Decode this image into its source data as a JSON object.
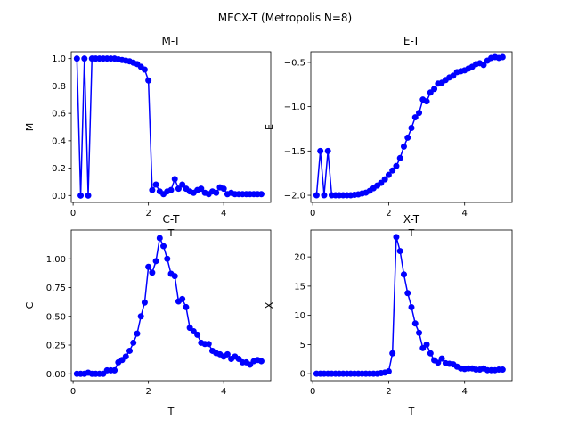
{
  "figure": {
    "title": "MECX-T (Metropolis N=8)"
  },
  "chart_data": [
    {
      "type": "line",
      "title": "M-T",
      "xlabel": "T",
      "ylabel": "M",
      "xlim": [
        -0.05,
        5.25
      ],
      "ylim": [
        -0.05,
        1.05
      ],
      "xticks": [
        0,
        2,
        4
      ],
      "yticks": [
        0.0,
        0.2,
        0.4,
        0.6,
        0.8,
        1.0
      ],
      "color": "#0000ff",
      "marker": "circle",
      "x": [
        0.1,
        0.2,
        0.3,
        0.4,
        0.5,
        0.6,
        0.7,
        0.8,
        0.9,
        1.0,
        1.1,
        1.2,
        1.3,
        1.4,
        1.5,
        1.6,
        1.7,
        1.8,
        1.9,
        2.0,
        2.1,
        2.2,
        2.3,
        2.4,
        2.5,
        2.6,
        2.7,
        2.8,
        2.9,
        3.0,
        3.1,
        3.2,
        3.3,
        3.4,
        3.5,
        3.6,
        3.7,
        3.8,
        3.9,
        4.0,
        4.1,
        4.2,
        4.3,
        4.4,
        4.5,
        4.6,
        4.7,
        4.8,
        4.9,
        5.0
      ],
      "y": [
        1.0,
        0.0,
        1.0,
        0.0,
        1.0,
        1.0,
        1.0,
        1.0,
        1.0,
        1.0,
        1.0,
        0.995,
        0.99,
        0.985,
        0.98,
        0.97,
        0.96,
        0.94,
        0.92,
        0.84,
        0.04,
        0.08,
        0.03,
        0.01,
        0.03,
        0.04,
        0.12,
        0.05,
        0.08,
        0.05,
        0.03,
        0.02,
        0.04,
        0.05,
        0.02,
        0.01,
        0.03,
        0.02,
        0.06,
        0.05,
        0.01,
        0.02,
        0.01,
        0.01,
        0.01,
        0.01,
        0.01,
        0.01,
        0.01,
        0.01
      ]
    },
    {
      "type": "line",
      "title": "E-T",
      "xlabel": "T",
      "ylabel": "E",
      "xlim": [
        -0.05,
        5.25
      ],
      "ylim": [
        -2.08,
        -0.38
      ],
      "xticks": [
        0,
        2,
        4
      ],
      "yticks": [
        -2.0,
        -1.5,
        -1.0,
        -0.5
      ],
      "color": "#0000ff",
      "marker": "circle",
      "x": [
        0.1,
        0.2,
        0.3,
        0.4,
        0.5,
        0.6,
        0.7,
        0.8,
        0.9,
        1.0,
        1.1,
        1.2,
        1.3,
        1.4,
        1.5,
        1.6,
        1.7,
        1.8,
        1.9,
        2.0,
        2.1,
        2.2,
        2.3,
        2.4,
        2.5,
        2.6,
        2.7,
        2.8,
        2.9,
        3.0,
        3.1,
        3.2,
        3.3,
        3.4,
        3.5,
        3.6,
        3.7,
        3.8,
        3.9,
        4.0,
        4.1,
        4.2,
        4.3,
        4.4,
        4.5,
        4.6,
        4.7,
        4.8,
        4.9,
        5.0
      ],
      "y": [
        -2.0,
        -1.5,
        -2.0,
        -1.5,
        -2.0,
        -2.0,
        -2.0,
        -2.0,
        -2.0,
        -2.0,
        -1.995,
        -1.99,
        -1.98,
        -1.97,
        -1.95,
        -1.92,
        -1.89,
        -1.86,
        -1.82,
        -1.77,
        -1.72,
        -1.67,
        -1.58,
        -1.45,
        -1.35,
        -1.24,
        -1.12,
        -1.07,
        -0.92,
        -0.94,
        -0.84,
        -0.8,
        -0.74,
        -0.73,
        -0.7,
        -0.67,
        -0.65,
        -0.61,
        -0.6,
        -0.59,
        -0.57,
        -0.55,
        -0.52,
        -0.51,
        -0.53,
        -0.48,
        -0.45,
        -0.44,
        -0.45,
        -0.44
      ]
    },
    {
      "type": "line",
      "title": "C-T",
      "xlabel": "T",
      "ylabel": "C",
      "xlim": [
        -0.05,
        5.25
      ],
      "ylim": [
        -0.06,
        1.25
      ],
      "xticks": [
        0,
        2,
        4
      ],
      "yticks": [
        0.0,
        0.25,
        0.5,
        0.75,
        1.0
      ],
      "color": "#0000ff",
      "marker": "circle",
      "x": [
        0.1,
        0.2,
        0.3,
        0.4,
        0.5,
        0.6,
        0.7,
        0.8,
        0.9,
        1.0,
        1.1,
        1.2,
        1.3,
        1.4,
        1.5,
        1.6,
        1.7,
        1.8,
        1.9,
        2.0,
        2.1,
        2.2,
        2.3,
        2.4,
        2.5,
        2.6,
        2.7,
        2.8,
        2.9,
        3.0,
        3.1,
        3.2,
        3.3,
        3.4,
        3.5,
        3.6,
        3.7,
        3.8,
        3.9,
        4.0,
        4.1,
        4.2,
        4.3,
        4.4,
        4.5,
        4.6,
        4.7,
        4.8,
        4.9,
        5.0
      ],
      "y": [
        0.0,
        0.0,
        0.0,
        0.01,
        0.0,
        0.0,
        0.0,
        0.0,
        0.03,
        0.03,
        0.03,
        0.1,
        0.12,
        0.15,
        0.2,
        0.27,
        0.35,
        0.5,
        0.62,
        0.93,
        0.88,
        0.98,
        1.18,
        1.11,
        1.0,
        0.87,
        0.85,
        0.63,
        0.65,
        0.58,
        0.4,
        0.37,
        0.34,
        0.27,
        0.26,
        0.26,
        0.2,
        0.18,
        0.17,
        0.15,
        0.17,
        0.13,
        0.15,
        0.13,
        0.1,
        0.1,
        0.08,
        0.11,
        0.12,
        0.11
      ]
    },
    {
      "type": "line",
      "title": "X-T",
      "xlabel": "T",
      "ylabel": "X",
      "xlim": [
        -0.05,
        5.25
      ],
      "ylim": [
        -1.2,
        24.6
      ],
      "xticks": [
        0,
        2,
        4
      ],
      "yticks": [
        0,
        5,
        10,
        15,
        20
      ],
      "color": "#0000ff",
      "marker": "circle",
      "x": [
        0.1,
        0.2,
        0.3,
        0.4,
        0.5,
        0.6,
        0.7,
        0.8,
        0.9,
        1.0,
        1.1,
        1.2,
        1.3,
        1.4,
        1.5,
        1.6,
        1.7,
        1.8,
        1.9,
        2.0,
        2.1,
        2.2,
        2.3,
        2.4,
        2.5,
        2.6,
        2.7,
        2.8,
        2.9,
        3.0,
        3.1,
        3.2,
        3.3,
        3.4,
        3.5,
        3.6,
        3.7,
        3.8,
        3.9,
        4.0,
        4.1,
        4.2,
        4.3,
        4.4,
        4.5,
        4.6,
        4.7,
        4.8,
        4.9,
        5.0
      ],
      "y": [
        0.0,
        0.0,
        0.0,
        0.0,
        0.0,
        0.0,
        0.0,
        0.0,
        0.0,
        0.0,
        0.0,
        0.0,
        0.0,
        0.0,
        0.0,
        0.0,
        0.0,
        0.1,
        0.2,
        0.4,
        3.5,
        23.4,
        21.0,
        17.0,
        13.8,
        11.4,
        8.6,
        7.0,
        4.4,
        5.0,
        3.5,
        2.3,
        1.9,
        2.6,
        1.8,
        1.7,
        1.6,
        1.2,
        0.9,
        0.8,
        0.9,
        0.9,
        0.7,
        0.7,
        0.9,
        0.6,
        0.6,
        0.6,
        0.7,
        0.7
      ]
    }
  ]
}
